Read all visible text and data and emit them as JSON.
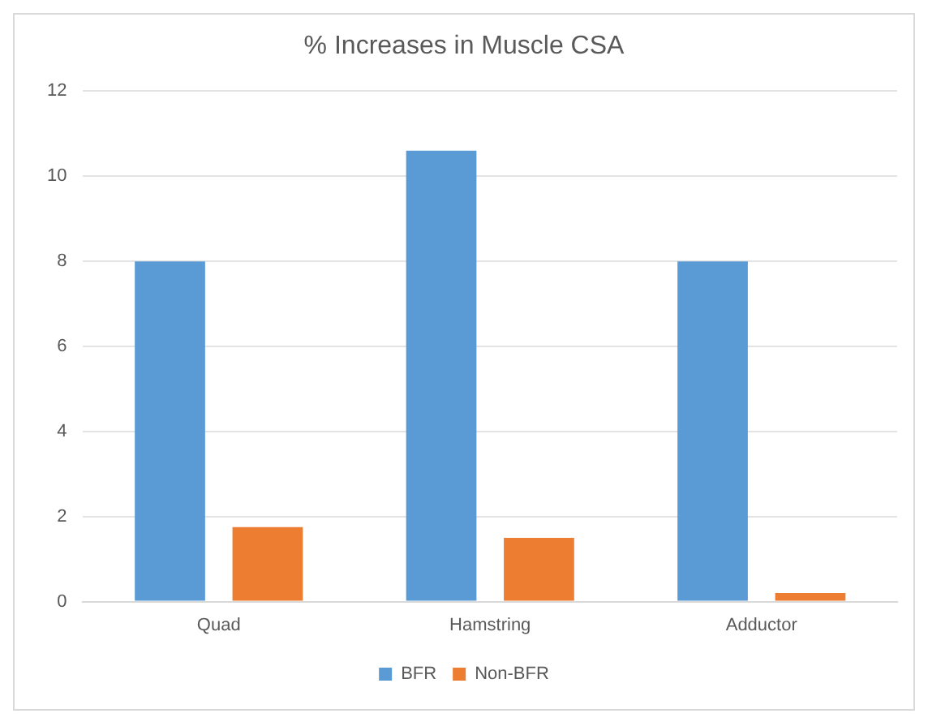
{
  "chart_data": {
    "type": "bar",
    "title": "% Increases in Muscle CSA",
    "categories": [
      "Quad",
      "Hamstring",
      "Adductor"
    ],
    "series": [
      {
        "name": "BFR",
        "color": "#5b9bd5",
        "values": [
          8,
          10.6,
          8
        ]
      },
      {
        "name": "Non-BFR",
        "color": "#ed7d31",
        "values": [
          1.75,
          1.5,
          0.2
        ]
      }
    ],
    "ylim": [
      0,
      12
    ],
    "yticks": [
      0,
      2,
      4,
      6,
      8,
      10,
      12
    ],
    "grid": "y",
    "legend": "bottom"
  }
}
